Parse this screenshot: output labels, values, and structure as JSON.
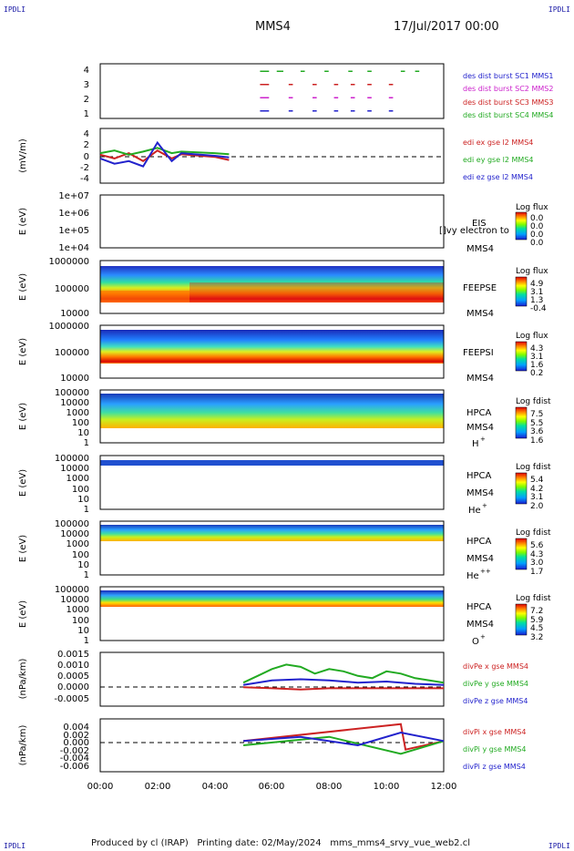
{
  "header": {
    "corner_tl": "IPDLI",
    "corner_tr": "IPDLI",
    "corner_bl": "IPDLI",
    "corner_br": "IPDLI",
    "spacecraft": "MMS4",
    "date": "17/Jul/2017 00:00"
  },
  "footer": {
    "text": "Produced by cl (IRAP)   Printing date: 02/May/2024   mms_mms4_srvy_vue_web2.cl"
  },
  "x_axis": {
    "ticks": [
      "00:00",
      "02:00",
      "04:00",
      "06:00",
      "08:00",
      "10:00",
      "12:00"
    ]
  },
  "panels": {
    "burst": {
      "yticks": [
        "4",
        "3",
        "2",
        "1"
      ],
      "legend": [
        {
          "text": "des dist burst SC1 MMS1",
          "color": "#2222cc"
        },
        {
          "text": "des dist burst SC2 MMS2",
          "color": "#cc22cc"
        },
        {
          "text": "des dist burst SC3 MMS3",
          "color": "#cc2222"
        },
        {
          "text": "des dist burst SC4 MMS4",
          "color": "#22aa22"
        }
      ]
    },
    "edi": {
      "ylabel": "(mV/m)",
      "yticks": [
        "4",
        "2",
        "0",
        "-2",
        "-4"
      ],
      "legend": [
        {
          "text": "edi ex gse l2 MMS4",
          "color": "#cc2222"
        },
        {
          "text": "edi ey gse l2 MMS4",
          "color": "#22aa22"
        },
        {
          "text": "edi ez gse l2 MMS4",
          "color": "#2222cc"
        }
      ]
    },
    "eis": {
      "ylabel": "E (eV)",
      "yticks": [
        "1e+07",
        "1e+06",
        "1e+05",
        "1e+04"
      ],
      "name": "EIS",
      "sub": "MMS4",
      "note": "[]vy electron to",
      "cbar_title": "Log flux",
      "cbar_ticks": [
        "0.0",
        "0.0",
        "0.0",
        "0.0"
      ]
    },
    "feepse": {
      "ylabel": "E (eV)",
      "yticks": [
        "1000000",
        "100000",
        "10000"
      ],
      "name": "FEEPSE",
      "sub": "MMS4",
      "cbar_title": "Log flux",
      "cbar_ticks": [
        "4.9",
        "3.1",
        "1.3",
        "-0.4"
      ]
    },
    "feepsi": {
      "ylabel": "E (eV)",
      "yticks": [
        "1000000",
        "100000",
        "10000"
      ],
      "name": "FEEPSI",
      "sub": "MMS4",
      "cbar_title": "Log flux",
      "cbar_ticks": [
        "4.3",
        "3.1",
        "1.6",
        "0.2"
      ]
    },
    "hpca_h": {
      "ylabel": "E (eV)",
      "yticks": [
        "100000",
        "10000",
        "1000",
        "100",
        "10",
        "1"
      ],
      "name": "HPCA",
      "sub": "MMS4",
      "species": "H",
      "charge": "+",
      "cbar_title": "Log fdist",
      "cbar_ticks": [
        "7.5",
        "5.5",
        "3.6",
        "1.6"
      ]
    },
    "hpca_he": {
      "ylabel": "E (eV)",
      "yticks": [
        "100000",
        "10000",
        "1000",
        "100",
        "10",
        "1"
      ],
      "name": "HPCA",
      "sub": "MMS4",
      "species": "He",
      "charge": "+",
      "cbar_title": "Log fdist",
      "cbar_ticks": [
        "5.4",
        "4.2",
        "3.1",
        "2.0"
      ]
    },
    "hpca_hepp": {
      "ylabel": "E (eV)",
      "yticks": [
        "100000",
        "10000",
        "1000",
        "100",
        "10",
        "1"
      ],
      "name": "HPCA",
      "sub": "MMS4",
      "species": "He",
      "charge": "++",
      "cbar_title": "Log fdist",
      "cbar_ticks": [
        "5.6",
        "4.3",
        "3.0",
        "1.7"
      ]
    },
    "hpca_o": {
      "ylabel": "E (eV)",
      "yticks": [
        "100000",
        "10000",
        "1000",
        "100",
        "10",
        "1"
      ],
      "name": "HPCA",
      "sub": "MMS4",
      "species": "O",
      "charge": "+",
      "cbar_title": "Log fdist",
      "cbar_ticks": [
        "7.2",
        "5.9",
        "4.5",
        "3.2"
      ]
    },
    "divpe": {
      "ylabel": "(nPa/km)",
      "yticks": [
        "0.0015",
        "0.0010",
        "0.0005",
        "0.0000",
        "-0.0005"
      ],
      "legend": [
        {
          "text": "divPe x gse MMS4",
          "color": "#cc2222"
        },
        {
          "text": "divPe y gse MMS4",
          "color": "#22aa22"
        },
        {
          "text": "divPe z gse MMS4",
          "color": "#2222cc"
        }
      ]
    },
    "divpi": {
      "ylabel": "(nPa/km)",
      "yticks": [
        "0.004",
        "0.002",
        "0.000",
        "-0.002",
        "-0.004",
        "-0.006"
      ],
      "legend": [
        {
          "text": "divPi x gse MMS4",
          "color": "#cc2222"
        },
        {
          "text": "divPi y gse MMS4",
          "color": "#22aa22"
        },
        {
          "text": "divPi z gse MMS4",
          "color": "#2222cc"
        }
      ]
    }
  },
  "chart_data": [
    {
      "type": "scatter",
      "panel": "burst",
      "xlim": [
        "00:00",
        "12:00"
      ],
      "ylim": [
        0.5,
        4.5
      ],
      "series": [
        {
          "name": "des dist burst SC1 MMS1",
          "y": 1,
          "intervals": [
            [
              "05:35",
              "05:50"
            ],
            [
              "06:35",
              "06:40"
            ],
            [
              "07:25",
              "07:30"
            ],
            [
              "08:10",
              "08:15"
            ],
            [
              "08:45",
              "08:50"
            ],
            [
              "09:20",
              "09:25"
            ],
            [
              "10:05",
              "10:10"
            ]
          ]
        },
        {
          "name": "des dist burst SC2 MMS2",
          "y": 2,
          "intervals": [
            [
              "05:35",
              "05:50"
            ],
            [
              "06:35",
              "06:40"
            ],
            [
              "07:25",
              "07:30"
            ],
            [
              "08:10",
              "08:15"
            ],
            [
              "08:45",
              "08:50"
            ],
            [
              "09:20",
              "09:25"
            ],
            [
              "10:05",
              "10:10"
            ]
          ]
        },
        {
          "name": "des dist burst SC3 MMS3",
          "y": 3,
          "intervals": [
            [
              "05:35",
              "05:50"
            ],
            [
              "06:35",
              "06:40"
            ],
            [
              "07:25",
              "07:30"
            ],
            [
              "08:10",
              "08:15"
            ],
            [
              "08:45",
              "08:50"
            ],
            [
              "09:20",
              "09:25"
            ],
            [
              "10:05",
              "10:10"
            ]
          ]
        },
        {
          "name": "des dist burst SC4 MMS4",
          "y": 4,
          "intervals": [
            [
              "05:35",
              "05:50"
            ],
            [
              "06:10",
              "06:20"
            ],
            [
              "07:00",
              "07:05"
            ],
            [
              "07:50",
              "07:55"
            ],
            [
              "08:40",
              "08:45"
            ],
            [
              "09:20",
              "09:25"
            ],
            [
              "10:30",
              "10:35"
            ],
            [
              "11:00",
              "11:05"
            ]
          ]
        }
      ]
    },
    {
      "type": "line",
      "panel": "edi",
      "ylabel": "(mV/m)",
      "ylim": [
        -5,
        5
      ],
      "note": "data gap after 03:00; sparse points near 04:00-04:30",
      "series": [
        {
          "name": "edi ex gse l2 MMS4",
          "points": [
            [
              "00:00",
              0.2
            ],
            [
              "00:30",
              -0.5
            ],
            [
              "01:00",
              0.5
            ],
            [
              "01:30",
              -1.0
            ],
            [
              "02:00",
              1.0
            ],
            [
              "02:30",
              -0.5
            ],
            [
              "02:50",
              0.3
            ],
            [
              "04:00",
              -0.2
            ],
            [
              "04:30",
              -0.8
            ]
          ]
        },
        {
          "name": "edi ey gse l2 MMS4",
          "points": [
            [
              "00:00",
              0.5
            ],
            [
              "00:30",
              1.0
            ],
            [
              "01:00",
              0.2
            ],
            [
              "01:30",
              0.8
            ],
            [
              "02:00",
              1.5
            ],
            [
              "02:30",
              0.5
            ],
            [
              "02:50",
              0.8
            ],
            [
              "04:00",
              0.5
            ],
            [
              "04:30",
              0.3
            ]
          ]
        },
        {
          "name": "edi ez gse l2 MMS4",
          "points": [
            [
              "00:00",
              -0.5
            ],
            [
              "00:30",
              -1.5
            ],
            [
              "01:00",
              -1.0
            ],
            [
              "01:30",
              -2.0
            ],
            [
              "02:00",
              2.5
            ],
            [
              "02:30",
              -1.0
            ],
            [
              "02:50",
              0.5
            ],
            [
              "04:00",
              0.0
            ],
            [
              "04:30",
              -0.3
            ]
          ]
        }
      ]
    },
    {
      "type": "heatmap",
      "panel": "feepse",
      "ylim": [
        10000,
        1000000
      ],
      "log_y": true,
      "color_range": [
        -0.4,
        4.9
      ],
      "features": [
        {
          "from": "00:00",
          "to": "03:00",
          "peak_energy_eV": 50000
        },
        {
          "from": "03:00",
          "to": "12:00",
          "peak_energy_eV": 50000
        }
      ]
    },
    {
      "type": "heatmap",
      "panel": "feepsi",
      "ylim": [
        10000,
        1000000
      ],
      "log_y": true,
      "color_range": [
        0.2,
        4.3
      ],
      "features": [
        {
          "from": "00:00",
          "to": "12:00",
          "peak_energy_eV": 70000
        }
      ]
    },
    {
      "type": "heatmap",
      "panel": "hpca_h",
      "ylim": [
        1,
        100000
      ],
      "log_y": true,
      "color_range": [
        1.6,
        7.5
      ]
    },
    {
      "type": "heatmap",
      "panel": "hpca_he",
      "ylim": [
        1,
        100000
      ],
      "log_y": true,
      "color_range": [
        2.0,
        5.4
      ]
    },
    {
      "type": "heatmap",
      "panel": "hpca_hepp",
      "ylim": [
        1,
        100000
      ],
      "log_y": true,
      "color_range": [
        1.7,
        5.6
      ]
    },
    {
      "type": "heatmap",
      "panel": "hpca_o",
      "ylim": [
        1,
        100000
      ],
      "log_y": true,
      "color_range": [
        3.2,
        7.2
      ]
    },
    {
      "type": "line",
      "panel": "divpe",
      "ylabel": "(nPa/km)",
      "ylim": [
        -0.0008,
        0.0015
      ],
      "series": [
        {
          "name": "divPe x gse MMS4",
          "points": [
            [
              "05:00",
              0.0
            ],
            [
              "06:00",
              -5e-05
            ],
            [
              "07:00",
              -0.0001
            ],
            [
              "08:00",
              -5e-05
            ],
            [
              "09:00",
              -5e-05
            ],
            [
              "10:00",
              -5e-05
            ],
            [
              "11:00",
              -5e-05
            ],
            [
              "12:00",
              -5e-05
            ]
          ]
        },
        {
          "name": "divPe y gse MMS4",
          "points": [
            [
              "05:00",
              0.0002
            ],
            [
              "05:30",
              0.0005
            ],
            [
              "06:00",
              0.0008
            ],
            [
              "06:30",
              0.001
            ],
            [
              "07:00",
              0.0009
            ],
            [
              "07:30",
              0.0006
            ],
            [
              "08:00",
              0.0008
            ],
            [
              "08:30",
              0.0007
            ],
            [
              "09:00",
              0.0005
            ],
            [
              "09:30",
              0.0004
            ],
            [
              "10:00",
              0.0007
            ],
            [
              "10:30",
              0.0006
            ],
            [
              "11:00",
              0.0004
            ],
            [
              "11:30",
              0.0003
            ],
            [
              "12:00",
              0.0002
            ]
          ]
        },
        {
          "name": "divPe z gse MMS4",
          "points": [
            [
              "05:00",
              0.0001
            ],
            [
              "06:00",
              0.0003
            ],
            [
              "07:00",
              0.00035
            ],
            [
              "08:00",
              0.0003
            ],
            [
              "09:00",
              0.0002
            ],
            [
              "10:00",
              0.00025
            ],
            [
              "11:00",
              0.00015
            ],
            [
              "12:00",
              0.0001
            ]
          ]
        }
      ]
    },
    {
      "type": "line",
      "panel": "divpi",
      "ylabel": "(nPa/km)",
      "ylim": [
        -0.007,
        0.005
      ],
      "series": [
        {
          "name": "divPi x gse MMS4",
          "points": [
            [
              "05:00",
              0.0
            ],
            [
              "10:30",
              0.004
            ],
            [
              "10:40",
              -0.002
            ],
            [
              "12:00",
              0.0
            ]
          ]
        },
        {
          "name": "divPi y gse MMS4",
          "points": [
            [
              "05:00",
              -0.001
            ],
            [
              "08:00",
              0.001
            ],
            [
              "10:30",
              -0.003
            ],
            [
              "12:00",
              0.0
            ]
          ]
        },
        {
          "name": "divPi z gse MMS4",
          "points": [
            [
              "05:00",
              0.0
            ],
            [
              "07:00",
              0.001
            ],
            [
              "09:00",
              -0.001
            ],
            [
              "10:30",
              0.002
            ],
            [
              "12:00",
              0.0
            ]
          ]
        }
      ]
    }
  ]
}
